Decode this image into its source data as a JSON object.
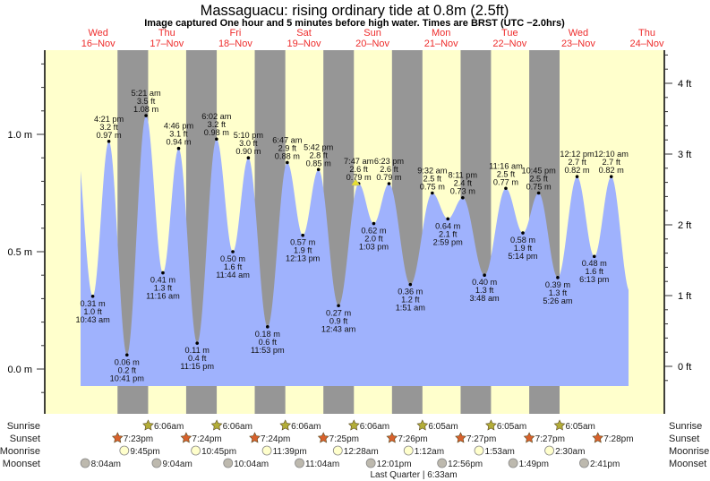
{
  "chart_data": {
    "type": "area",
    "title": "Massaguacu: rising  ordinary tide at 0.8m (2.5ft)",
    "subtitle": "Image captured One hour and 5 minutes before high water. Times are BRST (UTC −2.0hrs)",
    "days": [
      {
        "dow": "Wed",
        "date": "16–Nov"
      },
      {
        "dow": "Thu",
        "date": "17–Nov"
      },
      {
        "dow": "Fri",
        "date": "18–Nov"
      },
      {
        "dow": "Sat",
        "date": "19–Nov"
      },
      {
        "dow": "Sun",
        "date": "20–Nov"
      },
      {
        "dow": "Mon",
        "date": "21–Nov"
      },
      {
        "dow": "Tue",
        "date": "22–Nov"
      },
      {
        "dow": "Wed",
        "date": "23–Nov"
      },
      {
        "dow": "Thu",
        "date": "24–Nov"
      }
    ],
    "y_left": {
      "unit": "m",
      "ticks": [
        "0.0 m",
        "0.5 m",
        "1.0 m"
      ],
      "range": [
        -0.1,
        1.35
      ]
    },
    "y_right": {
      "unit": "ft",
      "ticks": [
        "0 ft",
        "1 ft",
        "2 ft",
        "3 ft",
        "4 ft"
      ]
    },
    "extremes": [
      {
        "day": 0,
        "time": "10:43 am",
        "type": "low",
        "m": "0.31 m",
        "ft": "1.0 ft",
        "value": 0.31
      },
      {
        "day": 0,
        "time": "4:21 pm",
        "type": "high",
        "m": "0.97 m",
        "ft": "3.2 ft",
        "value": 0.97
      },
      {
        "day": 0,
        "time": "10:41 pm",
        "type": "low",
        "m": "0.06 m",
        "ft": "0.2 ft",
        "value": 0.06
      },
      {
        "day": 1,
        "time": "5:21 am",
        "type": "high",
        "m": "1.08 m",
        "ft": "3.5 ft",
        "value": 1.08
      },
      {
        "day": 1,
        "time": "11:16 am",
        "type": "low",
        "m": "0.41 m",
        "ft": "1.3 ft",
        "value": 0.41
      },
      {
        "day": 1,
        "time": "4:46 pm",
        "type": "high",
        "m": "0.94 m",
        "ft": "3.1 ft",
        "value": 0.94
      },
      {
        "day": 1,
        "time": "11:15 pm",
        "type": "low",
        "m": "0.11 m",
        "ft": "0.4 ft",
        "value": 0.11
      },
      {
        "day": 2,
        "time": "6:02 am",
        "type": "high",
        "m": "0.98 m",
        "ft": "3.2 ft",
        "value": 0.98
      },
      {
        "day": 2,
        "time": "11:44 am",
        "type": "low",
        "m": "0.50 m",
        "ft": "1.6 ft",
        "value": 0.5
      },
      {
        "day": 2,
        "time": "5:10 pm",
        "type": "high",
        "m": "0.90 m",
        "ft": "3.0 ft",
        "value": 0.9
      },
      {
        "day": 2,
        "time": "11:53 pm",
        "type": "low",
        "m": "0.18 m",
        "ft": "0.6 ft",
        "value": 0.18
      },
      {
        "day": 3,
        "time": "6:47 am",
        "type": "high",
        "m": "0.88 m",
        "ft": "2.9 ft",
        "value": 0.88
      },
      {
        "day": 3,
        "time": "12:13 pm",
        "type": "low",
        "m": "0.57 m",
        "ft": "1.9 ft",
        "value": 0.57
      },
      {
        "day": 3,
        "time": "5:42 pm",
        "type": "high",
        "m": "0.85 m",
        "ft": "2.8 ft",
        "value": 0.85
      },
      {
        "day": 4,
        "time": "12:43 am",
        "type": "low",
        "m": "0.27 m",
        "ft": "0.9 ft",
        "value": 0.27
      },
      {
        "day": 4,
        "time": "7:47 am",
        "type": "high",
        "m": "0.79 m",
        "ft": "2.6 ft",
        "value": 0.79
      },
      {
        "day": 4,
        "time": "1:03 pm",
        "type": "low",
        "m": "0.62 m",
        "ft": "2.0 ft",
        "value": 0.62
      },
      {
        "day": 4,
        "time": "6:23 pm",
        "type": "high",
        "m": "0.79 m",
        "ft": "2.6 ft",
        "value": 0.79
      },
      {
        "day": 5,
        "time": "1:51 am",
        "type": "low",
        "m": "0.36 m",
        "ft": "1.2 ft",
        "value": 0.36
      },
      {
        "day": 5,
        "time": "9:32 am",
        "type": "high",
        "m": "0.75 m",
        "ft": "2.5 ft",
        "value": 0.75
      },
      {
        "day": 5,
        "time": "2:59 pm",
        "type": "low",
        "m": "0.64 m",
        "ft": "2.1 ft",
        "value": 0.64
      },
      {
        "day": 5,
        "time": "8:11 pm",
        "type": "high",
        "m": "0.73 m",
        "ft": "2.4 ft",
        "value": 0.73
      },
      {
        "day": 6,
        "time": "3:48 am",
        "type": "low",
        "m": "0.40 m",
        "ft": "1.3 ft",
        "value": 0.4
      },
      {
        "day": 6,
        "time": "11:16 am",
        "type": "high",
        "m": "0.77 m",
        "ft": "2.5 ft",
        "value": 0.77
      },
      {
        "day": 6,
        "time": "5:14 pm",
        "type": "low",
        "m": "0.58 m",
        "ft": "1.9 ft",
        "value": 0.58
      },
      {
        "day": 6,
        "time": "10:45 pm",
        "type": "high",
        "m": "0.75 m",
        "ft": "2.5 ft",
        "value": 0.75
      },
      {
        "day": 7,
        "time": "5:26 am",
        "type": "low",
        "m": "0.39 m",
        "ft": "1.3 ft",
        "value": 0.39
      },
      {
        "day": 7,
        "time": "12:12 pm",
        "type": "high",
        "m": "0.82 m",
        "ft": "2.7 ft",
        "value": 0.82
      },
      {
        "day": 7,
        "time": "6:13 pm",
        "type": "low",
        "m": "0.48 m",
        "ft": "1.6 ft",
        "value": 0.48
      },
      {
        "day": 8,
        "time": "12:10 am",
        "type": "high",
        "m": "0.82 m",
        "ft": "2.7 ft",
        "value": 0.82
      }
    ],
    "now_marker": {
      "day": 4,
      "time": "6:42 am"
    },
    "rows": {
      "sunrise": {
        "label": "Sunrise",
        "items": [
          {
            "day": 1,
            "time": "6:06am"
          },
          {
            "day": 2,
            "time": "6:06am"
          },
          {
            "day": 3,
            "time": "6:06am"
          },
          {
            "day": 4,
            "time": "6:06am"
          },
          {
            "day": 5,
            "time": "6:05am"
          },
          {
            "day": 6,
            "time": "6:05am"
          },
          {
            "day": 7,
            "time": "6:05am"
          }
        ]
      },
      "sunset": {
        "label": "Sunset",
        "items": [
          {
            "day": 0,
            "time": "7:23pm"
          },
          {
            "day": 1,
            "time": "7:24pm"
          },
          {
            "day": 2,
            "time": "7:24pm"
          },
          {
            "day": 3,
            "time": "7:25pm"
          },
          {
            "day": 4,
            "time": "7:26pm"
          },
          {
            "day": 5,
            "time": "7:27pm"
          },
          {
            "day": 6,
            "time": "7:27pm"
          },
          {
            "day": 7,
            "time": "7:28pm"
          }
        ]
      },
      "moonrise": {
        "label": "Moonrise",
        "items": [
          {
            "day": 0,
            "time": "9:45pm"
          },
          {
            "day": 1,
            "time": "10:45pm"
          },
          {
            "day": 2,
            "time": "11:39pm"
          },
          {
            "day": 4,
            "time": "12:28am"
          },
          {
            "day": 5,
            "time": "1:12am"
          },
          {
            "day": 6,
            "time": "1:53am"
          },
          {
            "day": 7,
            "time": "2:30am"
          }
        ]
      },
      "moonset": {
        "label": "Moonset",
        "items": [
          {
            "day": 0,
            "time": "8:04am"
          },
          {
            "day": 1,
            "time": "9:04am"
          },
          {
            "day": 2,
            "time": "10:04am"
          },
          {
            "day": 3,
            "time": "11:04am"
          },
          {
            "day": 4,
            "time": "12:01pm"
          },
          {
            "day": 5,
            "time": "12:56pm"
          },
          {
            "day": 6,
            "time": "1:49pm"
          },
          {
            "day": 7,
            "time": "2:41pm"
          }
        ]
      }
    },
    "moon_phase": "Last Quarter | 6:33am",
    "colors": {
      "day": "#ffffcc",
      "night": "#969696",
      "water": "#9fb2fd",
      "day_label": "#ee2c2c",
      "sunrise": "#b3ad38",
      "sunset": "#d8612c",
      "moonrise": "#ffffcc",
      "moonset": "#bdb9ae"
    }
  }
}
